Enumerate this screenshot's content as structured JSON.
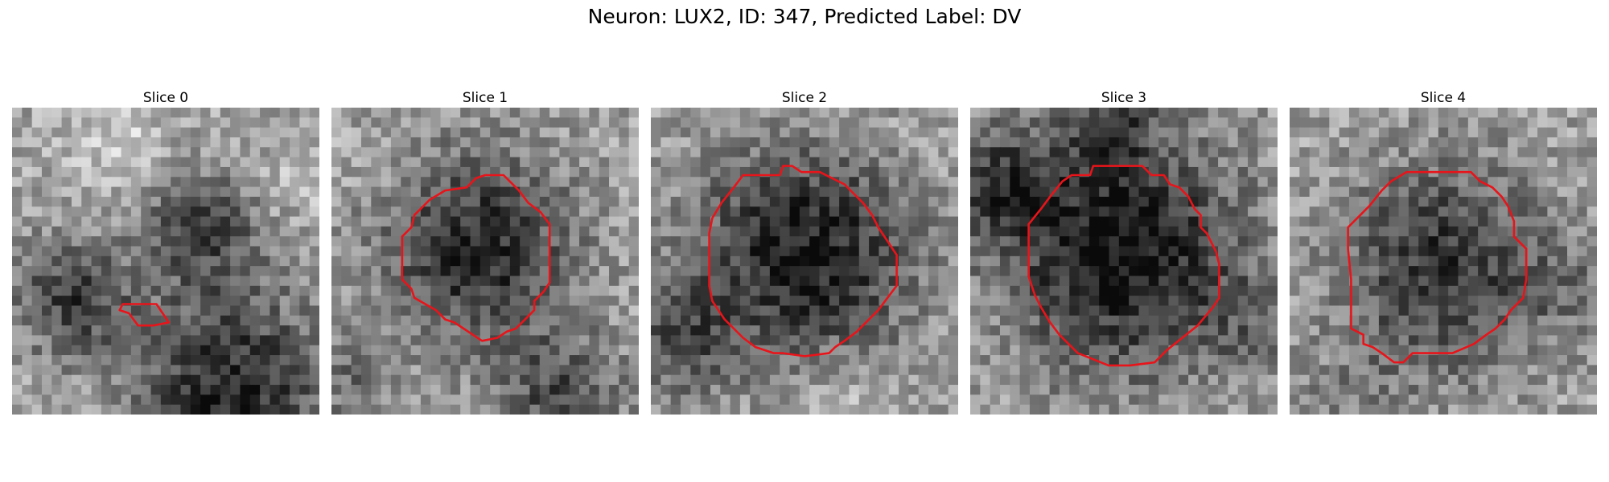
{
  "figure": {
    "title": "Neuron: LUX2, ID: 347, Predicted Label: DV",
    "contour_color": "#e8141a"
  },
  "panels": [
    {
      "title": "Slice 0"
    },
    {
      "title": "Slice 1"
    },
    {
      "title": "Slice 2"
    },
    {
      "title": "Slice 3"
    },
    {
      "title": "Slice 4"
    }
  ]
}
